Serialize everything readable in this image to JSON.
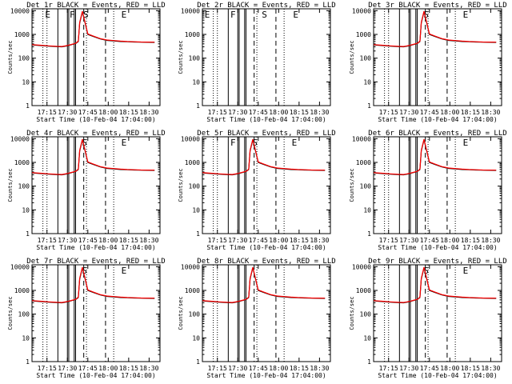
{
  "common": {
    "ylabel": "Counts/sec",
    "xlabel": "Start Time (10-Feb-04 17:04:00)",
    "x_tick_labels": [
      "17:15",
      "17:30",
      "17:45",
      "18:00",
      "18:15",
      "18:30"
    ],
    "y_tick_labels": [
      "1",
      "10",
      "100",
      "1000",
      "10000"
    ]
  },
  "chart_data": [
    {
      "type": "line",
      "title": "Det 1r BLACK = Events, RED = LLD",
      "xlabel": "Start Time (10-Feb-04 17:04:00)",
      "ylabel": "Counts/sec",
      "y_scale": "log",
      "ylim": [
        1,
        12000
      ],
      "x_unit": "minutes after 17:04",
      "xlim": [
        0,
        94
      ],
      "x": [
        0,
        6,
        12,
        18,
        22,
        26,
        29,
        32,
        34,
        35,
        37,
        41,
        45,
        50,
        55,
        60,
        65,
        70,
        75,
        80,
        85,
        90
      ],
      "series": [
        {
          "name": "Events",
          "color": "#000000",
          "values": [
            360,
            340,
            320,
            305,
            300,
            330,
            370,
            410,
            500,
            3000,
            9000,
            1000,
            820,
            650,
            560,
            530,
            500,
            490,
            480,
            470,
            465,
            460
          ]
        },
        {
          "name": "LLD",
          "color": "#ff0000",
          "values": [
            370,
            350,
            330,
            315,
            310,
            340,
            380,
            420,
            520,
            3200,
            9500,
            1050,
            850,
            670,
            580,
            550,
            520,
            500,
            490,
            480,
            475,
            470
          ]
        }
      ],
      "vlines": {
        "dotted": [
          8,
          11,
          40,
          60
        ],
        "solid": [
          19,
          26,
          27,
          31,
          32
        ],
        "dashed": [
          38,
          54
        ]
      },
      "markers": [
        {
          "label": "E",
          "x": 9
        },
        {
          "label": "F",
          "x": 27
        },
        {
          "label": "S",
          "x": 37
        },
        {
          "label": "E",
          "x": 65
        }
      ]
    },
    {
      "type": "line",
      "title": "Det 2r BLACK = Events, RED = LLD",
      "xlabel": "Start Time (10-Feb-04 17:04:00)",
      "ylabel": "Counts/sec",
      "y_scale": "log",
      "ylim": [
        1,
        12000
      ],
      "x_unit": "minutes after 17:04",
      "xlim": [
        0,
        94
      ],
      "x": [],
      "series": [
        {
          "name": "Events",
          "color": "#000000",
          "values": []
        },
        {
          "name": "LLD",
          "color": "#ff0000",
          "values": []
        }
      ],
      "vlines": {
        "dotted": [
          8,
          11,
          40,
          60
        ],
        "solid": [
          19,
          26,
          27,
          31,
          32
        ],
        "dashed": [
          38,
          54
        ]
      },
      "markers": [
        {
          "label": "E",
          "x": 1
        },
        {
          "label": "F",
          "x": 20
        },
        {
          "label": "S",
          "x": 43
        },
        {
          "label": "E",
          "x": 66
        }
      ]
    },
    {
      "type": "line",
      "title": "Det 3r BLACK = Events, RED = LLD",
      "xlabel": "Start Time (10-Feb-04 17:04:00)",
      "ylabel": "Counts/sec",
      "y_scale": "log",
      "ylim": [
        1,
        12000
      ],
      "x_unit": "minutes after 17:04",
      "xlim": [
        0,
        94
      ],
      "x": [
        0,
        6,
        12,
        18,
        22,
        26,
        29,
        32,
        34,
        35,
        37,
        41,
        45,
        50,
        55,
        60,
        65,
        70,
        75,
        80,
        85,
        90
      ],
      "series": [
        {
          "name": "Events",
          "color": "#000000",
          "values": [
            360,
            340,
            320,
            305,
            300,
            330,
            370,
            410,
            500,
            3000,
            9000,
            1000,
            820,
            650,
            560,
            530,
            500,
            490,
            480,
            470,
            465,
            460
          ]
        },
        {
          "name": "LLD",
          "color": "#ff0000",
          "values": [
            370,
            350,
            330,
            315,
            310,
            340,
            380,
            420,
            520,
            3200,
            9500,
            1050,
            850,
            670,
            580,
            550,
            520,
            500,
            490,
            480,
            475,
            470
          ]
        }
      ],
      "vlines": {
        "dotted": [
          8,
          11,
          40,
          60
        ],
        "solid": [
          19,
          26,
          27,
          31,
          32
        ],
        "dashed": [
          38,
          54
        ]
      },
      "markers": [
        {
          "label": "S",
          "x": 36
        },
        {
          "label": "E",
          "x": 65
        }
      ]
    },
    {
      "type": "line",
      "title": "Det 4r BLACK = Events, RED = LLD",
      "xlabel": "Start Time (10-Feb-04 17:04:00)",
      "ylabel": "Counts/sec",
      "y_scale": "log",
      "ylim": [
        1,
        12000
      ],
      "x_unit": "minutes after 17:04",
      "xlim": [
        0,
        94
      ],
      "x": [
        0,
        6,
        12,
        18,
        22,
        26,
        29,
        32,
        34,
        35,
        37,
        41,
        45,
        50,
        55,
        60,
        65,
        70,
        75,
        80,
        85,
        90
      ],
      "series": [
        {
          "name": "Events",
          "color": "#000000",
          "values": [
            360,
            340,
            320,
            305,
            300,
            330,
            370,
            410,
            500,
            3000,
            9000,
            1000,
            820,
            650,
            560,
            530,
            500,
            490,
            480,
            470,
            465,
            460
          ]
        },
        {
          "name": "LLD",
          "color": "#ff0000",
          "values": [
            370,
            350,
            330,
            315,
            310,
            340,
            380,
            420,
            520,
            3200,
            9500,
            1050,
            850,
            670,
            580,
            550,
            520,
            500,
            490,
            480,
            475,
            470
          ]
        }
      ],
      "vlines": {
        "dotted": [
          8,
          11,
          40,
          60
        ],
        "solid": [
          19,
          26,
          27,
          31,
          32
        ],
        "dashed": [
          38,
          54
        ]
      },
      "markers": [
        {
          "label": "S",
          "x": 36
        },
        {
          "label": "E",
          "x": 65
        }
      ]
    },
    {
      "type": "line",
      "title": "Det 5r BLACK = Events, RED = LLD",
      "xlabel": "Start Time (10-Feb-04 17:04:00)",
      "ylabel": "Counts/sec",
      "y_scale": "log",
      "ylim": [
        1,
        12000
      ],
      "x_unit": "minutes after 17:04",
      "xlim": [
        0,
        94
      ],
      "x": [
        0,
        6,
        12,
        18,
        22,
        26,
        29,
        32,
        34,
        35,
        37,
        41,
        45,
        50,
        55,
        60,
        65,
        70,
        75,
        80,
        85,
        90
      ],
      "series": [
        {
          "name": "Events",
          "color": "#000000",
          "values": [
            360,
            340,
            320,
            305,
            300,
            330,
            370,
            410,
            500,
            3000,
            9000,
            1000,
            820,
            650,
            560,
            530,
            500,
            490,
            480,
            470,
            465,
            460
          ]
        },
        {
          "name": "LLD",
          "color": "#ff0000",
          "values": [
            370,
            350,
            330,
            315,
            310,
            340,
            380,
            420,
            520,
            3200,
            9500,
            1050,
            850,
            670,
            580,
            550,
            520,
            500,
            490,
            480,
            475,
            470
          ]
        }
      ],
      "vlines": {
        "dotted": [
          8,
          11,
          40,
          60
        ],
        "solid": [
          19,
          26,
          27,
          31,
          32
        ],
        "dashed": [
          38,
          54
        ]
      },
      "markers": [
        {
          "label": "F",
          "x": 20
        },
        {
          "label": "S",
          "x": 36
        },
        {
          "label": "E",
          "x": 65
        }
      ]
    },
    {
      "type": "line",
      "title": "Det 6r BLACK = Events, RED = LLD",
      "xlabel": "Start Time (10-Feb-04 17:04:00)",
      "ylabel": "Counts/sec",
      "y_scale": "log",
      "ylim": [
        1,
        12000
      ],
      "x_unit": "minutes after 17:04",
      "xlim": [
        0,
        94
      ],
      "x": [
        0,
        6,
        12,
        18,
        22,
        26,
        29,
        32,
        34,
        35,
        37,
        41,
        45,
        50,
        55,
        60,
        65,
        70,
        75,
        80,
        85,
        90
      ],
      "series": [
        {
          "name": "Events",
          "color": "#000000",
          "values": [
            360,
            340,
            320,
            305,
            300,
            330,
            370,
            410,
            500,
            3000,
            9000,
            1000,
            820,
            650,
            560,
            530,
            500,
            490,
            480,
            470,
            465,
            460
          ]
        },
        {
          "name": "LLD",
          "color": "#ff0000",
          "values": [
            370,
            350,
            330,
            315,
            310,
            340,
            380,
            420,
            520,
            3200,
            9500,
            1050,
            850,
            670,
            580,
            550,
            520,
            500,
            490,
            480,
            475,
            470
          ]
        }
      ],
      "vlines": {
        "dotted": [
          8,
          11,
          40,
          60
        ],
        "solid": [
          19,
          26,
          27,
          31,
          32
        ],
        "dashed": [
          38,
          54
        ]
      },
      "markers": [
        {
          "label": "E",
          "x": 65
        }
      ]
    },
    {
      "type": "line",
      "title": "Det 7r BLACK = Events, RED = LLD",
      "xlabel": "Start Time (10-Feb-04 17:04:00)",
      "ylabel": "Counts/sec",
      "y_scale": "log",
      "ylim": [
        1,
        12000
      ],
      "x_unit": "minutes after 17:04",
      "xlim": [
        0,
        94
      ],
      "x": [
        0,
        6,
        12,
        18,
        22,
        26,
        29,
        32,
        34,
        35,
        37,
        41,
        45,
        50,
        55,
        60,
        65,
        70,
        75,
        80,
        85,
        90
      ],
      "series": [
        {
          "name": "Events",
          "color": "#000000",
          "values": [
            360,
            340,
            320,
            305,
            300,
            330,
            370,
            410,
            500,
            3000,
            9000,
            1000,
            820,
            650,
            560,
            530,
            500,
            490,
            480,
            470,
            465,
            460
          ]
        },
        {
          "name": "LLD",
          "color": "#ff0000",
          "values": [
            370,
            350,
            330,
            315,
            310,
            340,
            380,
            420,
            520,
            3200,
            9500,
            1050,
            850,
            670,
            580,
            550,
            520,
            500,
            490,
            480,
            475,
            470
          ]
        }
      ],
      "vlines": {
        "dotted": [
          8,
          11,
          40,
          60
        ],
        "solid": [
          19,
          26,
          27,
          31,
          32
        ],
        "dashed": [
          38,
          54
        ]
      },
      "markers": [
        {
          "label": "S",
          "x": 36
        },
        {
          "label": "E",
          "x": 65
        }
      ]
    },
    {
      "type": "line",
      "title": "Det 8r BLACK = Events, RED = LLD",
      "xlabel": "Start Time (10-Feb-04 17:04:00)",
      "ylabel": "Counts/sec",
      "y_scale": "log",
      "ylim": [
        1,
        12000
      ],
      "x_unit": "minutes after 17:04",
      "xlim": [
        0,
        94
      ],
      "x": [
        0,
        6,
        12,
        18,
        22,
        26,
        29,
        32,
        34,
        35,
        37,
        41,
        45,
        50,
        55,
        60,
        65,
        70,
        75,
        80,
        85,
        90
      ],
      "series": [
        {
          "name": "Events",
          "color": "#000000",
          "values": [
            360,
            340,
            320,
            305,
            300,
            330,
            370,
            410,
            500,
            3000,
            9000,
            1000,
            820,
            650,
            560,
            530,
            500,
            490,
            480,
            470,
            465,
            460
          ]
        },
        {
          "name": "LLD",
          "color": "#ff0000",
          "values": [
            370,
            350,
            330,
            315,
            310,
            340,
            380,
            420,
            520,
            3200,
            9500,
            1050,
            850,
            670,
            580,
            550,
            520,
            500,
            490,
            480,
            475,
            470
          ]
        }
      ],
      "vlines": {
        "dotted": [
          8,
          11,
          40,
          60
        ],
        "solid": [
          19,
          26,
          27,
          31,
          32
        ],
        "dashed": [
          38,
          54
        ]
      },
      "markers": []
    },
    {
      "type": "line",
      "title": "Det 9r BLACK = Events, RED = LLD",
      "xlabel": "Start Time (10-Feb-04 17:04:00)",
      "ylabel": "Counts/sec",
      "y_scale": "log",
      "ylim": [
        1,
        12000
      ],
      "x_unit": "minutes after 17:04",
      "xlim": [
        0,
        94
      ],
      "x": [
        0,
        6,
        12,
        18,
        22,
        26,
        29,
        32,
        34,
        35,
        37,
        41,
        45,
        50,
        55,
        60,
        65,
        70,
        75,
        80,
        85,
        90
      ],
      "series": [
        {
          "name": "Events",
          "color": "#000000",
          "values": [
            360,
            340,
            320,
            305,
            300,
            330,
            370,
            410,
            500,
            3000,
            9000,
            1000,
            820,
            650,
            560,
            530,
            500,
            490,
            480,
            470,
            465,
            460
          ]
        },
        {
          "name": "LLD",
          "color": "#ff0000",
          "values": [
            370,
            350,
            330,
            315,
            310,
            340,
            380,
            420,
            520,
            3200,
            9500,
            1050,
            850,
            670,
            580,
            550,
            520,
            500,
            490,
            480,
            475,
            470
          ]
        }
      ],
      "vlines": {
        "dotted": [
          8,
          11,
          40,
          60
        ],
        "solid": [
          19,
          26,
          27,
          31,
          32
        ],
        "dashed": [
          38,
          54
        ]
      },
      "markers": [
        {
          "label": "S",
          "x": 36
        },
        {
          "label": "E",
          "x": 65
        }
      ]
    }
  ]
}
